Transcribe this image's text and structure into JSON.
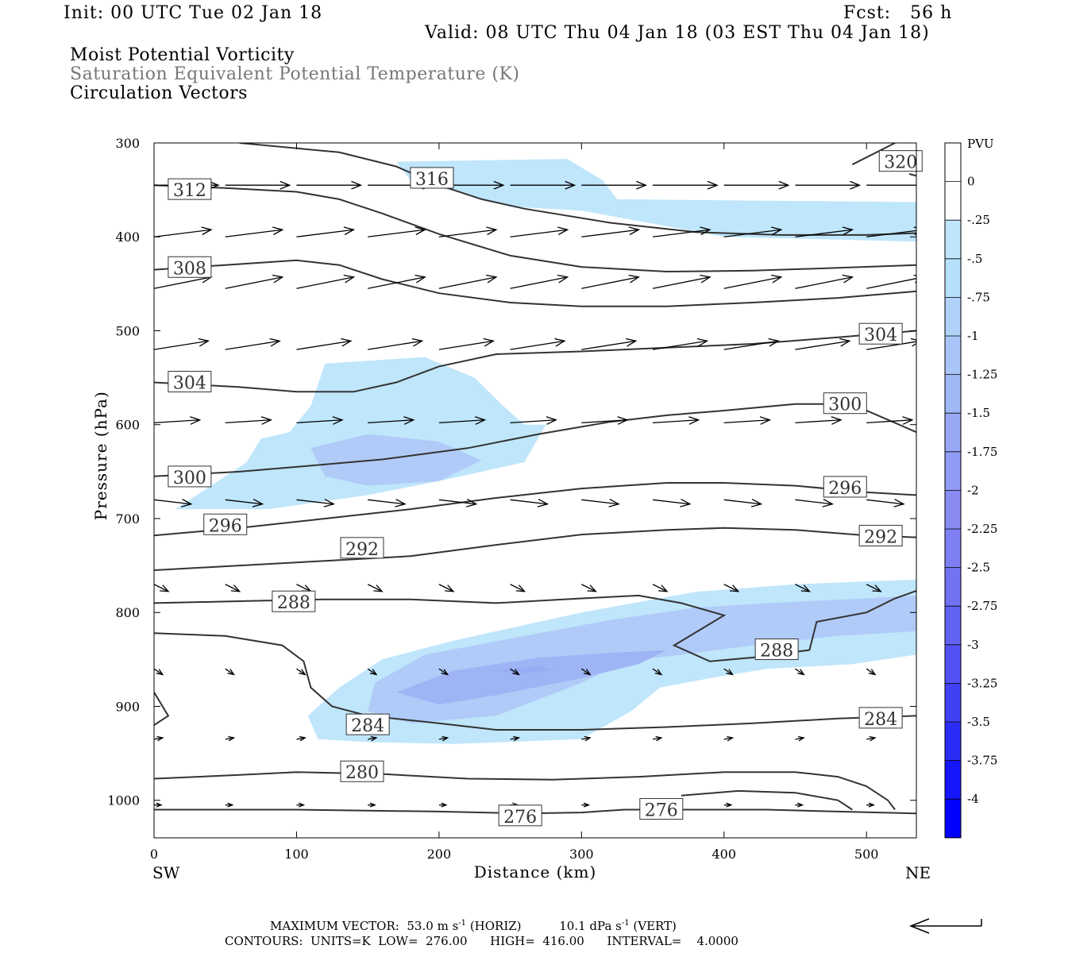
{
  "header": {
    "init": "Init: 00 UTC Tue 02 Jan 18",
    "fcst": "Fcst:   56 h",
    "valid": "Valid: 08 UTC Thu 04 Jan 18 (03 EST Thu 04 Jan 18)"
  },
  "legend_titles": [
    "Moist Potential Vorticity",
    "Saturation Equivalent Potential Temperature (K)",
    "Circulation Vectors"
  ],
  "footer": {
    "max_vector_label": "MAXIMUM VECTOR:",
    "horiz_value": "53.0",
    "horiz_unit": "m s",
    "horiz_tag": "(HORIZ)",
    "vert_value": "10.1",
    "vert_unit": "dPa s",
    "vert_tag": "(VERT)",
    "contours": "CONTOURS:  UNITS=K  LOW=  276.00      HIGH=  416.00      INTERVAL=    4.0000"
  },
  "colors": {
    "pv_light": "#bfe6fb",
    "pv_mid": "#b0cbf8",
    "pv_strong": "#9fb4f5",
    "contour": "#333333"
  },
  "chart_data": {
    "type": "heatmap",
    "xlabel": "Distance (km)",
    "ylabel": "Pressure (hPa)",
    "x_range": [
      0,
      535
    ],
    "y_range": [
      300,
      1040
    ],
    "x_ticks": [
      0,
      100,
      200,
      300,
      400,
      500
    ],
    "y_ticks": [
      300,
      400,
      500,
      600,
      700,
      800,
      900,
      1000
    ],
    "x_end_labels": {
      "left": "SW",
      "right": "NE"
    },
    "colorbar": {
      "unit": "PVU",
      "levels": [
        "0",
        "-.25",
        "-.5",
        "-.75",
        "-1",
        "-1.25",
        "-1.5",
        "-1.75",
        "-2",
        "-2.25",
        "-2.5",
        "-2.75",
        "-3",
        "-3.25",
        "-3.5",
        "-3.75",
        "-4"
      ],
      "colors": [
        "#ffffff",
        "#ffffff",
        "#bfe6fb",
        "#b5e0fb",
        "#b0d2f9",
        "#a9c5f8",
        "#a0b8f6",
        "#9aa9f5",
        "#919cf4",
        "#8a8cf3",
        "#7e7ff3",
        "#7272f3",
        "#6262f3",
        "#5252f4",
        "#4040f5",
        "#2c2cf7",
        "#1616fa",
        "#0000ff"
      ]
    },
    "pv_regions": [
      {
        "level": -0.25,
        "points": [
          [
            170,
            320
          ],
          [
            290,
            317
          ],
          [
            315,
            340
          ],
          [
            325,
            360
          ],
          [
            535,
            363
          ],
          [
            535,
            405
          ],
          [
            400,
            400
          ],
          [
            300,
            372
          ],
          [
            250,
            368
          ],
          [
            220,
            355
          ],
          [
            180,
            340
          ]
        ]
      },
      {
        "level": -0.25,
        "points": [
          [
            120,
            535
          ],
          [
            190,
            528
          ],
          [
            225,
            550
          ],
          [
            245,
            580
          ],
          [
            260,
            600
          ],
          [
            275,
            600
          ],
          [
            260,
            640
          ],
          [
            200,
            660
          ],
          [
            150,
            675
          ],
          [
            80,
            690
          ],
          [
            15,
            690
          ],
          [
            40,
            665
          ],
          [
            65,
            640
          ],
          [
            75,
            615
          ],
          [
            95,
            608
          ],
          [
            110,
            580
          ]
        ]
      },
      {
        "level": -0.25,
        "points": [
          [
            108,
            910
          ],
          [
            130,
            880
          ],
          [
            160,
            850
          ],
          [
            210,
            830
          ],
          [
            300,
            800
          ],
          [
            380,
            778
          ],
          [
            450,
            770
          ],
          [
            535,
            765
          ],
          [
            535,
            845
          ],
          [
            490,
            855
          ],
          [
            430,
            860
          ],
          [
            390,
            870
          ],
          [
            355,
            880
          ],
          [
            335,
            905
          ],
          [
            300,
            935
          ],
          [
            210,
            940
          ],
          [
            150,
            938
          ],
          [
            115,
            935
          ]
        ]
      },
      {
        "level": -0.5,
        "points": [
          [
            110,
            625
          ],
          [
            150,
            610
          ],
          [
            200,
            618
          ],
          [
            230,
            638
          ],
          [
            200,
            660
          ],
          [
            150,
            665
          ],
          [
            120,
            655
          ]
        ]
      },
      {
        "level": -0.5,
        "points": [
          [
            155,
            875
          ],
          [
            190,
            845
          ],
          [
            260,
            825
          ],
          [
            320,
            808
          ],
          [
            380,
            795
          ],
          [
            430,
            790
          ],
          [
            500,
            785
          ],
          [
            535,
            782
          ],
          [
            535,
            820
          ],
          [
            480,
            825
          ],
          [
            420,
            835
          ],
          [
            370,
            845
          ],
          [
            330,
            852
          ],
          [
            300,
            875
          ],
          [
            240,
            910
          ],
          [
            180,
            918
          ],
          [
            150,
            905
          ]
        ]
      },
      {
        "level": -1.0,
        "points": [
          [
            170,
            885
          ],
          [
            210,
            862
          ],
          [
            270,
            848
          ],
          [
            320,
            843
          ],
          [
            360,
            840
          ],
          [
            340,
            855
          ],
          [
            300,
            870
          ],
          [
            240,
            888
          ],
          [
            200,
            898
          ]
        ]
      },
      {
        "level": -1.25,
        "points": [
          [
            240,
            862
          ],
          [
            270,
            857
          ],
          [
            280,
            862
          ],
          [
            255,
            865
          ]
        ]
      }
    ],
    "contours": [
      {
        "level": 320,
        "points": [
          [
            490,
            323
          ],
          [
            520,
            300
          ]
        ]
      },
      {
        "level": 320,
        "points": [
          [
            530,
            333
          ],
          [
            535,
            335
          ]
        ]
      },
      {
        "level": 316,
        "points": [
          [
            60,
            300
          ],
          [
            130,
            310
          ],
          [
            170,
            325
          ],
          [
            200,
            345
          ],
          [
            230,
            360
          ],
          [
            260,
            370
          ],
          [
            320,
            385
          ],
          [
            380,
            395
          ],
          [
            440,
            398
          ],
          [
            500,
            398
          ],
          [
            535,
            396
          ]
        ]
      },
      {
        "level": 312,
        "points": [
          [
            0,
            345
          ],
          [
            50,
            348
          ],
          [
            100,
            352
          ],
          [
            130,
            360
          ],
          [
            160,
            375
          ],
          [
            200,
            397
          ],
          [
            250,
            420
          ],
          [
            300,
            432
          ],
          [
            360,
            437
          ],
          [
            420,
            436
          ],
          [
            480,
            433
          ],
          [
            535,
            430
          ]
        ]
      },
      {
        "level": 308,
        "points": [
          [
            0,
            435
          ],
          [
            50,
            430
          ],
          [
            100,
            425
          ],
          [
            130,
            430
          ],
          [
            160,
            445
          ],
          [
            200,
            460
          ],
          [
            250,
            470
          ],
          [
            300,
            474
          ],
          [
            360,
            474
          ],
          [
            420,
            470
          ],
          [
            480,
            465
          ],
          [
            535,
            458
          ]
        ]
      },
      {
        "level": 304,
        "points": [
          [
            0,
            555
          ],
          [
            60,
            560
          ],
          [
            100,
            565
          ],
          [
            140,
            565
          ],
          [
            170,
            555
          ],
          [
            200,
            538
          ],
          [
            240,
            525
          ],
          [
            300,
            522
          ],
          [
            360,
            518
          ],
          [
            420,
            514
          ],
          [
            480,
            507
          ],
          [
            535,
            500
          ]
        ]
      },
      {
        "level": 300,
        "points": [
          [
            0,
            655
          ],
          [
            60,
            650
          ],
          [
            100,
            645
          ],
          [
            160,
            637
          ],
          [
            220,
            625
          ],
          [
            270,
            610
          ],
          [
            320,
            597
          ],
          [
            360,
            590
          ],
          [
            400,
            585
          ],
          [
            450,
            578
          ],
          [
            480,
            578
          ],
          [
            500,
            585
          ],
          [
            520,
            598
          ],
          [
            535,
            608
          ]
        ]
      },
      {
        "level": 296,
        "points": [
          [
            0,
            718
          ],
          [
            60,
            710
          ],
          [
            120,
            700
          ],
          [
            180,
            690
          ],
          [
            240,
            678
          ],
          [
            300,
            668
          ],
          [
            360,
            662
          ],
          [
            400,
            662
          ],
          [
            450,
            665
          ],
          [
            500,
            672
          ],
          [
            535,
            675
          ]
        ]
      },
      {
        "level": 292,
        "points": [
          [
            0,
            755
          ],
          [
            60,
            750
          ],
          [
            120,
            745
          ],
          [
            180,
            740
          ],
          [
            240,
            728
          ],
          [
            300,
            717
          ],
          [
            360,
            712
          ],
          [
            400,
            710
          ],
          [
            450,
            712
          ],
          [
            500,
            718
          ],
          [
            535,
            720
          ]
        ]
      },
      {
        "level": 288,
        "points": [
          [
            0,
            790
          ],
          [
            60,
            788
          ],
          [
            120,
            786
          ],
          [
            180,
            786
          ],
          [
            240,
            790
          ],
          [
            300,
            785
          ],
          [
            340,
            782
          ],
          [
            370,
            790
          ],
          [
            400,
            803
          ],
          [
            365,
            835
          ],
          [
            390,
            852
          ],
          [
            420,
            848
          ],
          [
            460,
            840
          ],
          [
            465,
            810
          ],
          [
            500,
            800
          ],
          [
            520,
            785
          ],
          [
            535,
            777
          ]
        ]
      },
      {
        "level": 284,
        "points": [
          [
            0,
            822
          ],
          [
            50,
            825
          ],
          [
            90,
            835
          ],
          [
            105,
            852
          ],
          [
            110,
            880
          ],
          [
            125,
            900
          ],
          [
            150,
            910
          ],
          [
            200,
            918
          ],
          [
            240,
            925
          ],
          [
            300,
            925
          ],
          [
            360,
            922
          ],
          [
            420,
            918
          ],
          [
            480,
            913
          ],
          [
            535,
            910
          ]
        ]
      },
      {
        "level": 284,
        "points": [
          [
            0,
            885
          ],
          [
            10,
            910
          ],
          [
            0,
            920
          ]
        ]
      },
      {
        "level": 280,
        "points": [
          [
            0,
            977
          ],
          [
            60,
            973
          ],
          [
            100,
            970
          ],
          [
            160,
            972
          ],
          [
            220,
            977
          ],
          [
            280,
            978
          ],
          [
            340,
            975
          ],
          [
            400,
            970
          ],
          [
            450,
            970
          ],
          [
            480,
            975
          ],
          [
            500,
            985
          ],
          [
            515,
            1000
          ],
          [
            520,
            1010
          ]
        ]
      },
      {
        "level": 276,
        "points": [
          [
            0,
            1010
          ],
          [
            100,
            1010
          ],
          [
            200,
            1012
          ],
          [
            260,
            1014
          ],
          [
            300,
            1013
          ],
          [
            330,
            1010
          ],
          [
            380,
            1010
          ],
          [
            430,
            1010
          ],
          [
            480,
            1012
          ],
          [
            535,
            1014
          ]
        ]
      },
      {
        "level": 276,
        "points": [
          [
            370,
            995
          ],
          [
            410,
            990
          ],
          [
            450,
            992
          ],
          [
            480,
            1000
          ],
          [
            490,
            1010
          ]
        ]
      }
    ],
    "contour_labels": [
      {
        "text": "320",
        "x": 524,
        "y": 320
      },
      {
        "text": "316",
        "x": 195,
        "y": 338
      },
      {
        "text": "312",
        "x": 25,
        "y": 350
      },
      {
        "text": "308",
        "x": 25,
        "y": 433
      },
      {
        "text": "304",
        "x": 25,
        "y": 555
      },
      {
        "text": "304",
        "x": 510,
        "y": 504
      },
      {
        "text": "300",
        "x": 25,
        "y": 656
      },
      {
        "text": "300",
        "x": 485,
        "y": 578
      },
      {
        "text": "296",
        "x": 50,
        "y": 707
      },
      {
        "text": "296",
        "x": 485,
        "y": 667
      },
      {
        "text": "292",
        "x": 146,
        "y": 732
      },
      {
        "text": "292",
        "x": 510,
        "y": 719
      },
      {
        "text": "288",
        "x": 98,
        "y": 789
      },
      {
        "text": "288",
        "x": 437,
        "y": 840
      },
      {
        "text": "284",
        "x": 150,
        "y": 920
      },
      {
        "text": "284",
        "x": 510,
        "y": 913
      },
      {
        "text": "280",
        "x": 146,
        "y": 970
      },
      {
        "text": "276",
        "x": 257,
        "y": 1017
      },
      {
        "text": "276",
        "x": 356,
        "y": 1010
      }
    ],
    "vectors": [
      {
        "p": 345,
        "u": 4.5,
        "v": 0.0
      },
      {
        "p": 400,
        "u": 4.0,
        "v": 0.05
      },
      {
        "p": 455,
        "u": 4.0,
        "v": 0.08
      },
      {
        "p": 520,
        "u": 3.8,
        "v": 0.06
      },
      {
        "p": 598,
        "u": 3.2,
        "v": 0.02
      },
      {
        "p": 680,
        "u": 2.6,
        "v": -0.03
      },
      {
        "p": 770,
        "u": 1.0,
        "v": -0.05
      },
      {
        "p": 860,
        "u": 0.6,
        "v": -0.04
      },
      {
        "p": 935,
        "u": 0.6,
        "v": 0.01
      },
      {
        "p": 1005,
        "u": 0.5,
        "v": 0.0
      }
    ],
    "vector_x": [
      0,
      50,
      100,
      150,
      200,
      250,
      300,
      350,
      400,
      450,
      500,
      535
    ]
  }
}
